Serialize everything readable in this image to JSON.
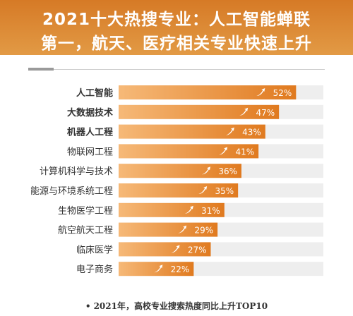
{
  "header": {
    "line1": "2021十大热搜专业：人工智能蝉联",
    "line2": "第一，航天、医疗相关专业快速上升"
  },
  "footnote": "2021年，高校专业搜索热度同比上升TOP10",
  "chart_data": {
    "type": "bar",
    "orientation": "horizontal",
    "categories": [
      "人工智能",
      "大数据技术",
      "机器人工程",
      "物联网工程",
      "计算机科学与技术",
      "能源与环境系统工程",
      "生物医学工程",
      "航空航天工程",
      "临床医学",
      "电子商务"
    ],
    "values": [
      52,
      47,
      43,
      41,
      36,
      35,
      31,
      29,
      27,
      22
    ],
    "value_labels": [
      "52%",
      "47%",
      "43%",
      "41%",
      "36%",
      "35%",
      "31%",
      "29%",
      "27%",
      "22%"
    ],
    "bold_categories": [
      "人工智能",
      "大数据技术",
      "机器人工程"
    ],
    "xlim": [
      0,
      60
    ],
    "grid": false,
    "colors": {
      "bar_start": "#f6b978",
      "bar_end": "#e07a1f",
      "track": "#eeeeee",
      "label": "#ffffff",
      "category": "#333333"
    }
  }
}
